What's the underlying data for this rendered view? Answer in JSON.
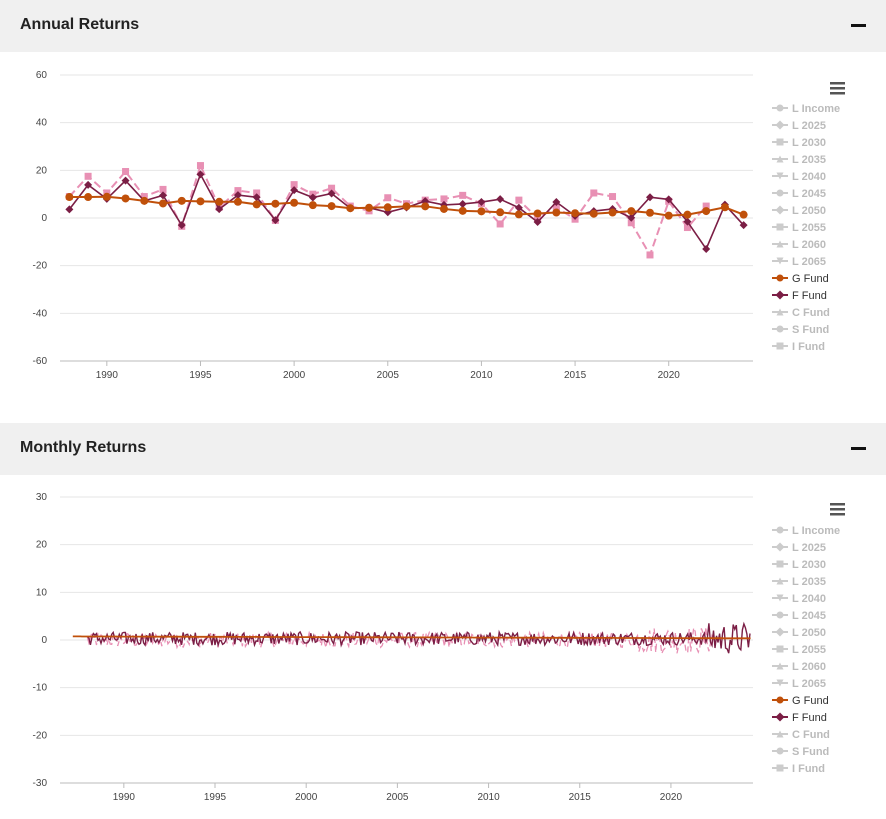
{
  "sections": [
    {
      "title": "Annual Returns"
    },
    {
      "title": "Monthly Returns"
    }
  ],
  "legend": [
    {
      "label": "L Income",
      "marker": "circle",
      "active": false
    },
    {
      "label": "L 2025",
      "marker": "diamond",
      "active": false
    },
    {
      "label": "L 2030",
      "marker": "square",
      "active": false
    },
    {
      "label": "L 2035",
      "marker": "triangle",
      "active": false
    },
    {
      "label": "L 2040",
      "marker": "triangle-down",
      "active": false
    },
    {
      "label": "L 2045",
      "marker": "circle",
      "active": false
    },
    {
      "label": "L 2050",
      "marker": "diamond",
      "active": false
    },
    {
      "label": "L 2055",
      "marker": "square",
      "active": false
    },
    {
      "label": "L 2060",
      "marker": "triangle",
      "active": false
    },
    {
      "label": "L 2065",
      "marker": "triangle-down",
      "active": false
    },
    {
      "label": "G Fund",
      "marker": "circle",
      "active": true,
      "color": "#c0500a"
    },
    {
      "label": "F Fund",
      "marker": "diamond",
      "active": true,
      "color": "#7b1e45"
    },
    {
      "label": "C Fund",
      "marker": "triangle",
      "active": false
    },
    {
      "label": "S Fund",
      "marker": "circle",
      "active": false
    },
    {
      "label": "I Fund",
      "marker": "square",
      "active": false
    }
  ],
  "colors": {
    "g_fund": "#c0500a",
    "f_fund": "#7b1e45",
    "pink": "#e890b4",
    "inactive": "#cccccc",
    "grid": "#e6e6e6"
  },
  "chart_data": [
    {
      "type": "line",
      "x_ticks": [
        1990,
        1995,
        2000,
        2005,
        2010,
        2015,
        2020
      ],
      "y_ticks": [
        60,
        40,
        20,
        0,
        -20,
        -40,
        -60
      ],
      "xlim": [
        1987.5,
        2024.5
      ],
      "ylim": [
        -60,
        60
      ],
      "grid": true,
      "legend_position": "right",
      "series": [
        {
          "name": "G Fund",
          "x": [
            1988,
            1989,
            1990,
            1991,
            1992,
            1993,
            1994,
            1995,
            1996,
            1997,
            1998,
            1999,
            2000,
            2001,
            2002,
            2003,
            2004,
            2005,
            2006,
            2007,
            2008,
            2009,
            2010,
            2011,
            2012,
            2013,
            2014,
            2015,
            2016,
            2017,
            2018,
            2019,
            2020,
            2021,
            2022,
            2023,
            2024
          ],
          "values": [
            8.8,
            8.8,
            8.9,
            8.2,
            7.2,
            6.1,
            7.2,
            7.0,
            6.8,
            6.8,
            5.7,
            6.0,
            6.4,
            5.4,
            5.0,
            4.1,
            4.3,
            4.5,
            4.9,
            4.9,
            3.8,
            3.0,
            2.8,
            2.4,
            1.5,
            1.9,
            2.3,
            2.0,
            1.8,
            2.3,
            2.9,
            2.2,
            1.0,
            1.4,
            2.9,
            4.5,
            1.4
          ]
        },
        {
          "name": "F Fund",
          "x": [
            1988,
            1989,
            1990,
            1991,
            1992,
            1993,
            1994,
            1995,
            1996,
            1997,
            1998,
            1999,
            2000,
            2001,
            2002,
            2003,
            2004,
            2005,
            2006,
            2007,
            2008,
            2009,
            2010,
            2011,
            2012,
            2013,
            2014,
            2015,
            2016,
            2017,
            2018,
            2019,
            2020,
            2021,
            2022,
            2023,
            2024
          ],
          "values": [
            3.6,
            13.9,
            8.0,
            15.7,
            7.2,
            9.5,
            -3.0,
            18.3,
            3.7,
            9.6,
            8.7,
            -0.9,
            11.7,
            8.6,
            10.3,
            4.1,
            4.3,
            2.4,
            4.4,
            7.1,
            5.5,
            5.9,
            6.7,
            7.9,
            4.3,
            -1.7,
            6.7,
            0.9,
            2.9,
            3.8,
            0.1,
            8.7,
            7.8,
            -1.5,
            -13.0,
            5.6,
            -3.0
          ]
        },
        {
          "name": "",
          "x": [
            1988,
            1989,
            1990,
            1991,
            1992,
            1993,
            1994,
            1995,
            1996,
            1997,
            1998,
            1999,
            2000,
            2001,
            2002,
            2003,
            2004,
            2005,
            2006,
            2007,
            2008,
            2009,
            2010,
            2011,
            2012,
            2013,
            2014,
            2015,
            2016,
            2017,
            2018,
            2019,
            2020,
            2021,
            2022
          ],
          "values": [
            9.0,
            17.5,
            10.5,
            19.5,
            9.0,
            12.0,
            -3.5,
            22.0,
            4.5,
            11.5,
            10.5,
            -1.0,
            14.0,
            10.0,
            12.5,
            5.0,
            3.0,
            8.5,
            6.0,
            7.5,
            8.0,
            9.5,
            6.0,
            -2.5,
            7.5,
            0.0,
            4.5,
            -0.5,
            10.5,
            9.0,
            -2.0,
            -15.5,
            7.0,
            -4.0,
            5.0
          ]
        }
      ]
    },
    {
      "type": "line",
      "x_ticks": [
        1990,
        1995,
        2000,
        2005,
        2010,
        2015,
        2020
      ],
      "y_ticks": [
        30,
        20,
        10,
        0,
        -10,
        -20,
        -30
      ],
      "xlim": [
        1986.5,
        2024.5
      ],
      "ylim": [
        -30,
        30
      ],
      "grid": true,
      "legend_position": "right",
      "series_note": "monthly G Fund ~0.2–0.8, F Fund and pink series oscillate roughly within ±4",
      "series": [
        {
          "name": "G Fund",
          "start": 1987.2,
          "end": 2024.4,
          "level_start": 0.75,
          "level_end": 0.35
        },
        {
          "name": "F Fund",
          "start": 1988.0,
          "end": 2024.4,
          "amplitude": 1.4
        },
        {
          "name": "",
          "start": 1988.0,
          "end": 2022.5,
          "amplitude": 1.6
        }
      ]
    }
  ]
}
